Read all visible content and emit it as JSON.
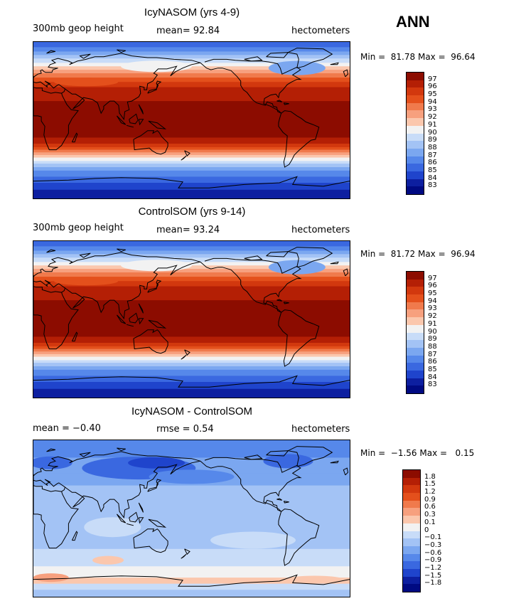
{
  "season": "ANN",
  "panels": [
    {
      "title": "IcyNASOM (yrs 4-9)",
      "left_label": "300mb geop height",
      "center_label": "mean=  92.84",
      "units": "hectometers",
      "minmax": "Min =  81.78 Max =  96.64",
      "kind": "field",
      "colorbar": {
        "labels": [
          "97",
          "96",
          "95",
          "94",
          "93",
          "92",
          "91",
          "90",
          "89",
          "88",
          "87",
          "86",
          "85",
          "84",
          "83"
        ],
        "colors": [
          "#8c0c00",
          "#b41f05",
          "#d2380e",
          "#e4501c",
          "#f07a4c",
          "#f7a07e",
          "#fbc7ad",
          "#f2f2f2",
          "#c8dcf8",
          "#a3c3f5",
          "#7ba7f0",
          "#5688ea",
          "#3a68e0",
          "#1f44cc",
          "#0d1fa0",
          "#000a82"
        ]
      }
    },
    {
      "title": "ControlSOM (yrs 9-14)",
      "left_label": "300mb geop height",
      "center_label": "mean=  93.24",
      "units": "hectometers",
      "minmax": "Min =  81.72 Max =  96.94",
      "kind": "field",
      "colorbar": {
        "labels": [
          "97",
          "96",
          "95",
          "94",
          "93",
          "92",
          "91",
          "90",
          "89",
          "88",
          "87",
          "86",
          "85",
          "84",
          "83"
        ],
        "colors": [
          "#8c0c00",
          "#b41f05",
          "#d2380e",
          "#e4501c",
          "#f07a4c",
          "#f7a07e",
          "#fbc7ad",
          "#f2f2f2",
          "#c8dcf8",
          "#a3c3f5",
          "#7ba7f0",
          "#5688ea",
          "#3a68e0",
          "#1f44cc",
          "#0d1fa0",
          "#000a82"
        ]
      }
    },
    {
      "title": "IcyNASOM - ControlSOM",
      "left_label": "mean =  −0.40",
      "center_label": "rmse =   0.54",
      "units": "hectometers",
      "minmax": "Min =  −1.56 Max =   0.15",
      "kind": "diff",
      "colorbar": {
        "labels": [
          "1.8",
          "1.5",
          "1.2",
          "0.9",
          "0.6",
          "0.3",
          "0.1",
          "0",
          "−0.1",
          "−0.3",
          "−0.6",
          "−0.9",
          "−1.2",
          "−1.5",
          "−1.8"
        ],
        "colors": [
          "#8c0c00",
          "#b41f05",
          "#d2380e",
          "#e4501c",
          "#f07a4c",
          "#f7a07e",
          "#fbc7ad",
          "#f2f2f2",
          "#c8dcf8",
          "#a3c3f5",
          "#7ba7f0",
          "#5688ea",
          "#3a68e0",
          "#1f44cc",
          "#0d1fa0",
          "#000a82"
        ]
      }
    }
  ]
}
